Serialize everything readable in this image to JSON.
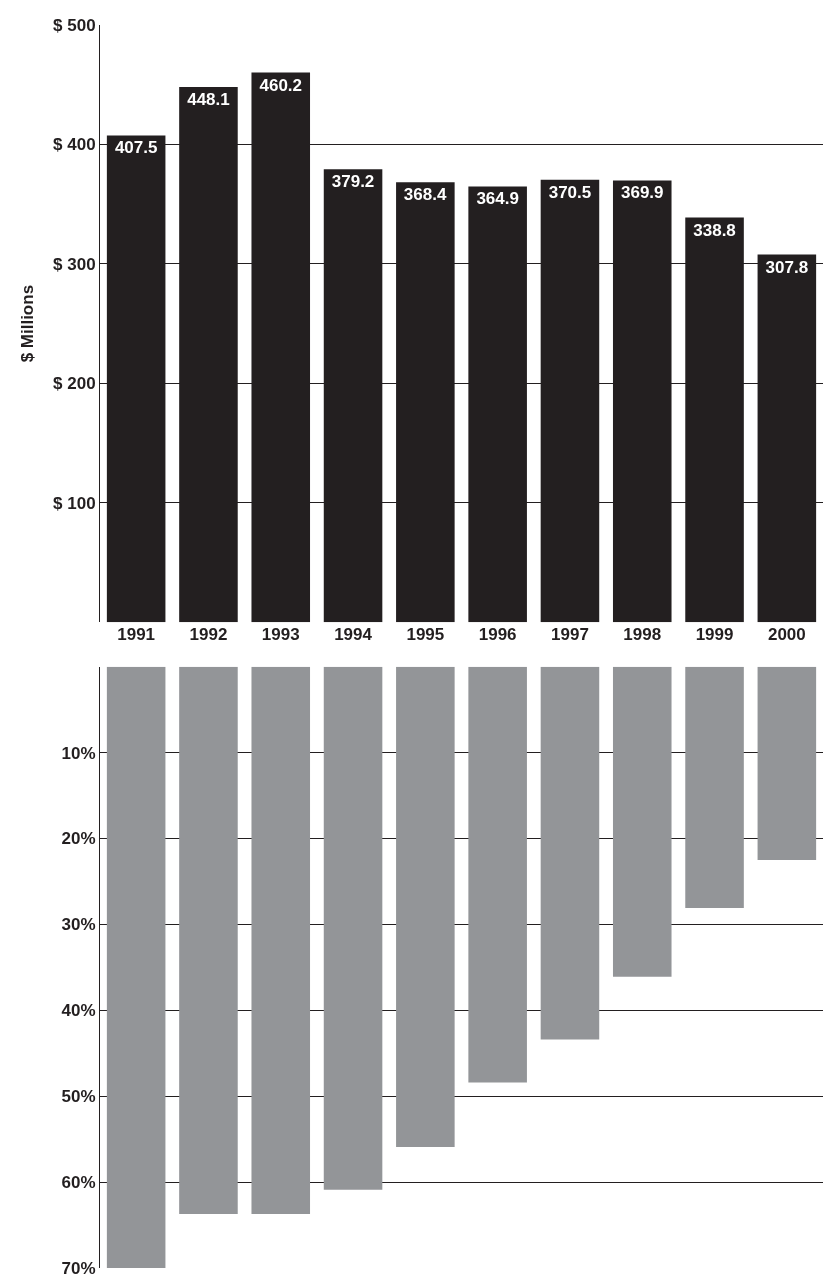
{
  "chart_data": [
    {
      "type": "bar",
      "ylabel": "$ Millions",
      "categories": [
        "1991",
        "1992",
        "1993",
        "1994",
        "1995",
        "1996",
        "1997",
        "1998",
        "1999",
        "2000"
      ],
      "series": [
        {
          "color": "#231f20",
          "values": [
            407.5,
            448.1,
            460.2,
            379.2,
            368.4,
            364.9,
            370.5,
            369.9,
            338.8,
            307.8
          ]
        }
      ],
      "ylim": [
        0,
        500
      ],
      "yticks": [
        {
          "value": 100,
          "label": "$ 100"
        },
        {
          "value": 200,
          "label": "$ 200"
        },
        {
          "value": 300,
          "label": "$ 300"
        },
        {
          "value": 400,
          "label": "$ 400"
        },
        {
          "value": 500,
          "label": "$ 500"
        }
      ],
      "grid": "y",
      "data_labels": true
    },
    {
      "type": "bar",
      "categories": [
        "1991",
        "1992",
        "1993",
        "1994",
        "1995",
        "1996",
        "1997",
        "1998",
        "1999",
        "2000"
      ],
      "series": [
        {
          "color": "#939598",
          "values": [
            70,
            63.7,
            63.7,
            60.9,
            55.9,
            48.4,
            43.4,
            36.1,
            28.1,
            22.5
          ]
        }
      ],
      "ylim": [
        70,
        0
      ],
      "yticks": [
        {
          "value": 10,
          "label": "10%"
        },
        {
          "value": 20,
          "label": "20%"
        },
        {
          "value": 30,
          "label": "30%"
        },
        {
          "value": 40,
          "label": "40%"
        },
        {
          "value": 50,
          "label": "50%"
        },
        {
          "value": 60,
          "label": "60%"
        },
        {
          "value": 70,
          "label": "70%"
        }
      ],
      "grid": "y",
      "tick_labels": "y"
    }
  ]
}
